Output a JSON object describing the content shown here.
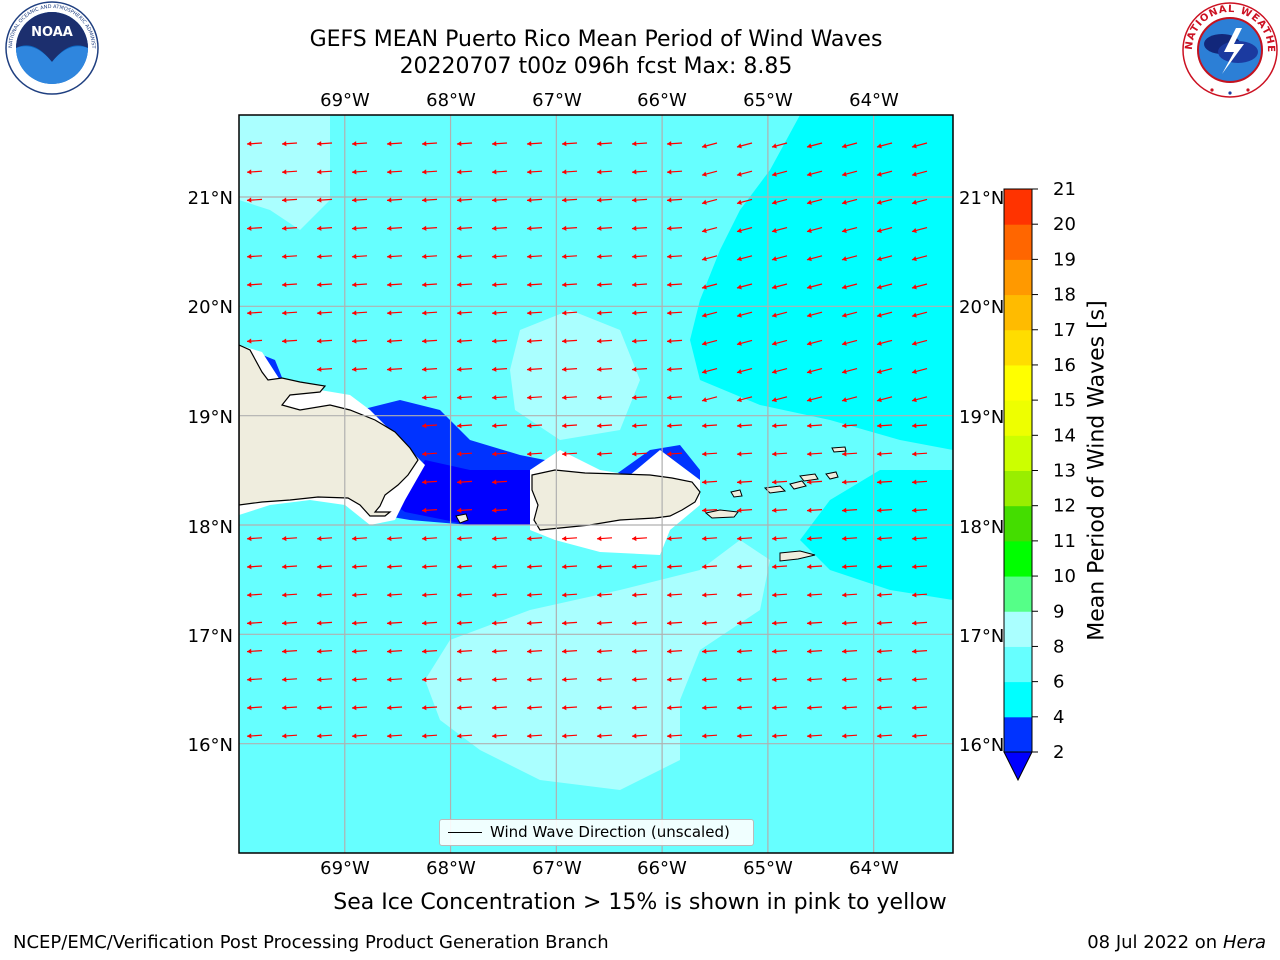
{
  "title": {
    "line1": "GEFS MEAN Puerto Rico Mean Period of Wind Waves",
    "line2": "20220707 t00z 096h fcst   Max: 8.85"
  },
  "logos": {
    "left": {
      "icon": "noaa-logo-icon",
      "text": "NOAA",
      "ring_text": "NATIONAL OCEANIC AND ATMOSPHERIC ADMINISTRATION · U.S. DEPARTMENT OF COMMERCE"
    },
    "right": {
      "icon": "nws-logo-icon",
      "ring_text": "NATIONAL WEATHER SERVICE"
    }
  },
  "map": {
    "lon_labels": [
      "69°W",
      "68°W",
      "67°W",
      "66°W",
      "65°W",
      "64°W"
    ],
    "lat_labels": [
      "21°N",
      "20°N",
      "19°N",
      "18°N",
      "17°N",
      "16°N"
    ],
    "lon_range": [
      -70.0,
      -63.25
    ],
    "lat_range": [
      15.0,
      21.75
    ],
    "ocean_color": "#00ffff",
    "land_color": "#efedde",
    "arrow_color": "#ff0000",
    "wind_direction": "westward (toward the west, slightly south-west in the north-east)",
    "legend": "Wind Wave Direction (unscaled)"
  },
  "colorbar": {
    "label": "Mean Period of Wind Waves [s]",
    "ticks": [
      "2",
      "4",
      "6",
      "8",
      "9",
      "10",
      "11",
      "12",
      "13",
      "14",
      "15",
      "16",
      "17",
      "18",
      "19",
      "20",
      "21"
    ],
    "colors": [
      "#0033ff",
      "#00ffff",
      "#66ffff",
      "#aaffff",
      "#55ff88",
      "#00ff00",
      "#44dd00",
      "#99ee00",
      "#ccff00",
      "#eeff00",
      "#ffff00",
      "#ffdd00",
      "#ffbb00",
      "#ff9900",
      "#ff6600",
      "#ff3300"
    ],
    "under_color": "#0000ff"
  },
  "footer": {
    "note": "Sea Ice Concentration > 15% is shown in pink to yellow",
    "left": "NCEP/EMC/Verification Post Processing Product Generation Branch",
    "right_date": "08 Jul 2022 on",
    "right_host": "Hera"
  }
}
